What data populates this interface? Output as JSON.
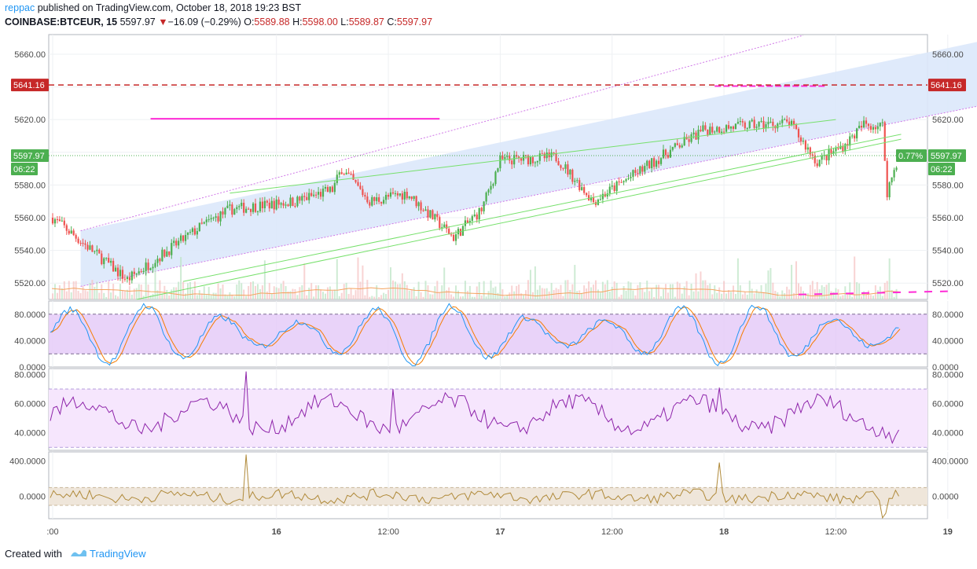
{
  "header": {
    "publisher": "reppac",
    "published_text": "published on TradingView.com, October 18, 2018 19:23 BST",
    "symbol": "COINBASE:BTCEUR, 15",
    "last": "5597.97",
    "change_arrow": "▼",
    "change": "−16.09 (−0.29%)",
    "o_label": "O:",
    "o_value": "5589.88",
    "h_label": "H:",
    "h_value": "5598.00",
    "l_label": "L:",
    "l_value": "5589.87",
    "c_label": "C:",
    "c_value": "5597.97"
  },
  "footer": {
    "created_with": "Created with",
    "brand": "TradingView"
  },
  "colors": {
    "up": "#4caf50",
    "down": "#ef5350",
    "channel_fill": "#dce8fb",
    "channel_line": "#d179e8",
    "trend_line": "#76e06b",
    "magenta": "#ff2bd6",
    "resistance": "#c62828",
    "stoch_k": "#2196f3",
    "stoch_d": "#f57c00",
    "stoch_band": "#e3c8f8",
    "rsi_line": "#8e24aa",
    "rsi_band": "#f6e6fd",
    "cci_line": "#b08a3a",
    "cci_band": "#efe6da"
  },
  "chart_data": [
    {
      "type": "candlestick",
      "ylim": [
        5510,
        5672
      ],
      "y_ticks": [
        "5660.00",
        "5640.00",
        "5620.00",
        "5600.00",
        "5580.00",
        "5560.00",
        "5540.00",
        "5520.00"
      ],
      "x_ticks": [
        ":00",
        "16",
        "12:00",
        "17",
        "12:00",
        "18",
        "12:00",
        "19"
      ],
      "price_tag": "5641.16",
      "last_price_tag": "5597.97",
      "last_price_left": "5597.97",
      "countdown": "06:22",
      "countdown_left": "06:22",
      "pct_tag": "0.77%",
      "key_points": [
        {
          "x": "15 00:00",
          "close": 5560
        },
        {
          "x": "15 08:00",
          "close": 5522
        },
        {
          "x": "15 16:00",
          "close": 5555
        },
        {
          "x": "15 19:00",
          "close": 5565
        },
        {
          "x": "16 02:00",
          "close": 5570
        },
        {
          "x": "16 06:00",
          "close": 5577
        },
        {
          "x": "16 07:00",
          "close": 5590
        },
        {
          "x": "16 10:00",
          "close": 5570
        },
        {
          "x": "16 14:00",
          "close": 5575
        },
        {
          "x": "16 19:00",
          "close": 5548
        },
        {
          "x": "16 22:00",
          "close": 5565
        },
        {
          "x": "17 00:00",
          "close": 5595
        },
        {
          "x": "17 06:00",
          "close": 5597
        },
        {
          "x": "17 10:00",
          "close": 5570
        },
        {
          "x": "17 14:00",
          "close": 5585
        },
        {
          "x": "17 18:00",
          "close": 5600
        },
        {
          "x": "17 22:00",
          "close": 5614
        },
        {
          "x": "18 04:00",
          "close": 5617
        },
        {
          "x": "18 07:00",
          "close": 5618
        },
        {
          "x": "18 10:00",
          "close": 5594
        },
        {
          "x": "18 13:00",
          "close": 5605
        },
        {
          "x": "18 15:00",
          "close": 5617
        },
        {
          "x": "18 17:00",
          "close": 5616
        },
        {
          "x": "18 17:30",
          "close": 5576
        },
        {
          "x": "18 18:45",
          "close": 5597.97
        }
      ]
    },
    {
      "type": "line",
      "name": "stochastic",
      "y_ticks": [
        "80.0000",
        "40.0000",
        "0.0000"
      ],
      "band": [
        20,
        80
      ],
      "ylim": [
        0,
        100
      ]
    },
    {
      "type": "line",
      "name": "rsi",
      "y_ticks": [
        "80.0000",
        "60.0000",
        "40.0000"
      ],
      "band": [
        30,
        70
      ],
      "ylim": [
        28,
        84
      ]
    },
    {
      "type": "line",
      "name": "cci",
      "y_ticks": [
        "400.0000",
        "0.0000"
      ],
      "band": [
        -100,
        100
      ],
      "ylim": [
        -250,
        500
      ]
    }
  ]
}
